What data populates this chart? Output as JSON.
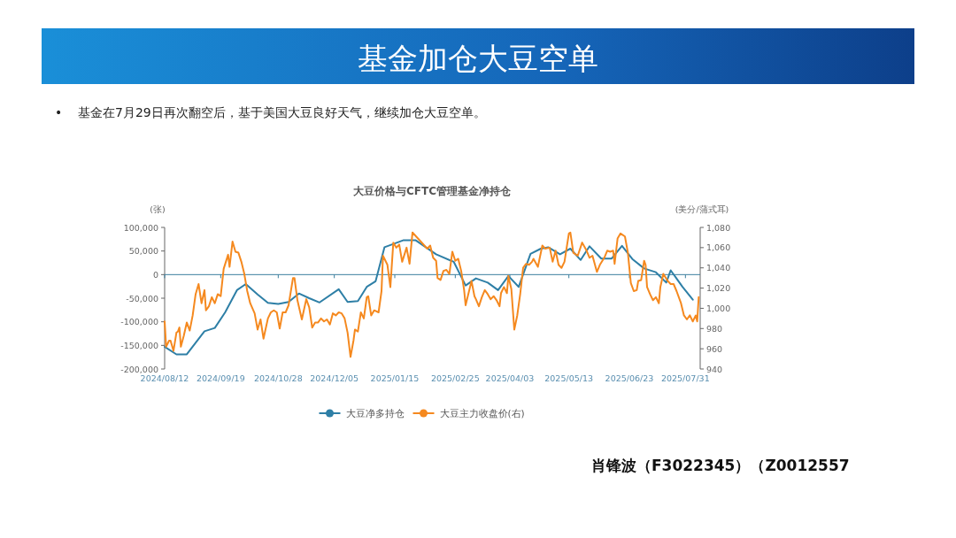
{
  "chart_data": {
    "type": "line",
    "title": "基金加仓大豆空单",
    "subtitle": "大豆价格与CFTC管理基金净持仓",
    "ylabel": "(张)",
    "y2label": "(美分/蒲式耳)",
    "annotations": [
      "•    基金在7月29日再次翻空后，基于美国大豆良好天气，继续加仓大豆空单。",
      "肖锋波（F3022345）（Z0012557"
    ],
    "xlim": [
      "2024-08-12",
      "2025-08-10"
    ],
    "xticks": [
      {
        "value": "2024-08-12",
        "label": "2024/08/12"
      },
      {
        "value": "2024-09-19",
        "label": "2024/09/19"
      },
      {
        "value": "2024-10-28",
        "label": "2024/10/28"
      },
      {
        "value": "2024-12-05",
        "label": "2024/12/05"
      },
      {
        "value": "2025-01-15",
        "label": "2025/01/15"
      },
      {
        "value": "2025-02-25",
        "label": "2025/02/25"
      },
      {
        "value": "2025-04-03",
        "label": "2025/04/03"
      },
      {
        "value": "2025-05-13",
        "label": "2025/05/13"
      },
      {
        "value": "2025-06-23",
        "label": "2025/06/23"
      },
      {
        "value": "2025-07-31",
        "label": "2025/07/31"
      }
    ],
    "ylim": [
      -200000,
      100000
    ],
    "yticks": [
      {
        "value": -200000,
        "label": "-200,000"
      },
      {
        "value": -150000,
        "label": "-150,000"
      },
      {
        "value": -100000,
        "label": "-100,000"
      },
      {
        "value": -50000,
        "label": "-50,000"
      },
      0,
      {
        "value": 50000,
        "label": "50,000"
      },
      {
        "value": 100000,
        "label": "100,000"
      }
    ],
    "y2lim": [
      940,
      1080
    ],
    "y2ticks": [
      940,
      960,
      980,
      {
        "value": 1000,
        "label": "1,000"
      },
      {
        "value": 1020,
        "label": "1,020"
      },
      {
        "value": 1040,
        "label": "1,040"
      },
      {
        "value": 1060,
        "label": "1,060"
      },
      {
        "value": 1080,
        "label": "1,080"
      }
    ],
    "ref_lines": [
      {
        "axis": "y",
        "value": 0,
        "color": "#3b7f9e"
      }
    ],
    "grid": false,
    "legend": "bottom",
    "marker": "none",
    "line_style": "solid",
    "series": [
      {
        "name": "大豆净多持仓",
        "color": "#2e7fa6",
        "x": [
          "2024-08-12",
          "2024-08-20",
          "2024-08-27",
          "2024-09-08",
          "2024-09-15",
          "2024-09-22",
          "2024-09-30",
          "2024-10-06",
          "2024-10-14",
          "2024-10-21",
          "2024-10-28",
          "2024-11-04",
          "2024-11-11",
          "2024-11-18",
          "2024-11-25",
          "2024-12-08",
          "2024-12-14",
          "2024-12-21",
          "2024-12-27",
          "2025-01-02",
          "2025-01-08",
          "2025-01-15",
          "2025-01-21",
          "2025-01-29",
          "2025-02-12",
          "2025-02-24",
          "2025-03-04",
          "2025-03-11",
          "2025-03-19",
          "2025-03-26",
          "2025-04-02",
          "2025-04-09",
          "2025-04-17",
          "2025-04-24",
          "2025-04-29",
          "2025-05-07",
          "2025-05-14",
          "2025-05-21",
          "2025-05-27",
          "2025-06-04",
          "2025-06-11",
          "2025-06-18",
          "2025-06-25",
          "2025-07-03",
          "2025-07-11",
          "2025-07-18",
          "2025-07-21",
          "2025-07-29",
          "2025-08-05"
        ],
        "values": [
          -153000,
          -169000,
          -169000,
          -120000,
          -113000,
          -80000,
          -33000,
          -20000,
          -42000,
          -60000,
          -62000,
          -58000,
          -40000,
          -50000,
          -59000,
          -31000,
          -58000,
          -56000,
          -26000,
          -14000,
          58000,
          66000,
          73000,
          73000,
          43000,
          27000,
          -23000,
          -8000,
          -17000,
          -33000,
          -3000,
          -26000,
          44000,
          55000,
          58000,
          43000,
          55000,
          31000,
          60000,
          34000,
          34000,
          61000,
          33000,
          13000,
          5000,
          -17000,
          9000,
          -26000,
          -53000
        ]
      },
      {
        "name": "大豆主力收盘价(右)",
        "color": "#f5891f",
        "axis": "y2",
        "x": [
          "2024-08-12",
          "2024-08-13",
          "2024-08-15",
          "2024-08-16",
          "2024-08-18",
          "2024-08-20",
          "2024-08-21",
          "2024-08-22",
          "2024-08-23",
          "2024-08-25",
          "2024-08-27",
          "2024-08-29",
          "2024-08-31",
          "2024-09-02",
          "2024-09-04",
          "2024-09-06",
          "2024-09-08",
          "2024-09-09",
          "2024-09-11",
          "2024-09-13",
          "2024-09-15",
          "2024-09-17",
          "2024-09-19",
          "2024-09-21",
          "2024-09-24",
          "2024-09-25",
          "2024-09-27",
          "2024-09-29",
          "2024-10-01",
          "2024-10-03",
          "2024-10-05",
          "2024-10-07",
          "2024-10-09",
          "2024-10-12",
          "2024-10-14",
          "2024-10-16",
          "2024-10-18",
          "2024-10-21",
          "2024-10-23",
          "2024-10-25",
          "2024-10-27",
          "2024-10-29",
          "2024-10-31",
          "2024-11-02",
          "2024-11-04",
          "2024-11-07",
          "2024-11-08",
          "2024-11-10",
          "2024-11-13",
          "2024-11-16",
          "2024-11-18",
          "2024-11-20",
          "2024-11-22",
          "2024-11-24",
          "2024-11-26",
          "2024-11-28",
          "2024-11-30",
          "2024-12-02",
          "2024-12-04",
          "2024-12-06",
          "2024-12-08",
          "2024-12-10",
          "2024-12-12",
          "2024-12-14",
          "2024-12-16",
          "2024-12-18",
          "2024-12-19",
          "2024-12-21",
          "2024-12-23",
          "2024-12-25",
          "2024-12-27",
          "2024-12-28",
          "2024-12-30",
          "2025-01-01",
          "2025-01-04",
          "2025-01-06",
          "2025-01-07",
          "2025-01-10",
          "2025-01-12",
          "2025-01-14",
          "2025-01-16",
          "2025-01-18",
          "2025-01-20",
          "2025-01-23",
          "2025-01-25",
          "2025-01-27",
          "2025-02-06",
          "2025-02-08",
          "2025-02-10",
          "2025-02-12",
          "2025-02-13",
          "2025-02-15",
          "2025-02-17",
          "2025-02-19",
          "2025-02-21",
          "2025-02-23",
          "2025-02-25",
          "2025-02-27",
          "2025-03-01",
          "2025-03-03",
          "2025-03-04",
          "2025-03-06",
          "2025-03-08",
          "2025-03-10",
          "2025-03-11",
          "2025-03-13",
          "2025-03-15",
          "2025-03-17",
          "2025-03-19",
          "2025-03-21",
          "2025-03-23",
          "2025-03-25",
          "2025-03-27",
          "2025-03-28",
          "2025-03-30",
          "2025-04-01",
          "2025-04-02",
          "2025-04-04",
          "2025-04-06",
          "2025-04-08",
          "2025-04-10",
          "2025-04-12",
          "2025-04-14",
          "2025-04-16",
          "2025-04-18",
          "2025-04-19",
          "2025-04-22",
          "2025-04-25",
          "2025-04-27",
          "2025-04-30",
          "2025-05-02",
          "2025-05-04",
          "2025-05-06",
          "2025-05-08",
          "2025-05-10",
          "2025-05-13",
          "2025-05-14",
          "2025-05-16",
          "2025-05-19",
          "2025-05-22",
          "2025-05-25",
          "2025-05-27",
          "2025-05-29",
          "2025-06-01",
          "2025-06-03",
          "2025-06-06",
          "2025-06-08",
          "2025-06-10",
          "2025-06-12",
          "2025-06-13",
          "2025-06-15",
          "2025-06-17",
          "2025-06-20",
          "2025-06-22",
          "2025-06-24",
          "2025-06-26",
          "2025-06-28",
          "2025-06-29",
          "2025-07-01",
          "2025-07-03",
          "2025-07-04",
          "2025-07-05",
          "2025-07-07",
          "2025-07-09",
          "2025-07-11",
          "2025-07-13",
          "2025-07-14",
          "2025-07-16",
          "2025-07-19",
          "2025-07-21",
          "2025-07-23",
          "2025-07-25",
          "2025-07-28",
          "2025-07-30",
          "2025-08-01",
          "2025-08-03",
          "2025-08-05",
          "2025-08-07",
          "2025-08-08",
          "2025-08-09"
        ],
        "values": [
          987,
          962,
          968,
          968,
          958,
          976,
          977,
          981,
          962,
          973,
          986,
          978,
          993,
          1014,
          1024,
          1005,
          1018,
          998,
          1002,
          1011,
          1005,
          1014,
          1012,
          1039,
          1053,
          1041,
          1066,
          1056,
          1055,
          1046,
          1034,
          1017,
          1005,
          995,
          979,
          989,
          970,
          990,
          996,
          998,
          996,
          980,
          996,
          996,
          1003,
          1030,
          1030,
          1008,
          989,
          1009,
          1001,
          981,
          986,
          986,
          990,
          987,
          989,
          984,
          995,
          993,
          996,
          995,
          990,
          976,
          952,
          968,
          979,
          977,
          996,
          990,
          1011,
          1012,
          993,
          998,
          996,
          1017,
          1052,
          1043,
          1021,
          1065,
          1060,
          1063,
          1046,
          1060,
          1044,
          1075,
          1059,
          1062,
          1050,
          1047,
          1030,
          1028,
          1037,
          1038,
          1034,
          1056,
          1047,
          1049,
          1037,
          1018,
          1003,
          1015,
          1027,
          1012,
          1009,
          1002,
          1011,
          1018,
          1014,
          1009,
          1012,
          1008,
          1002,
          1015,
          1021,
          1015,
          1032,
          1019,
          979,
          993,
          1014,
          1040,
          1044,
          1043,
          1046,
          1049,
          1041,
          1062,
          1059,
          1060,
          1046,
          1057,
          1043,
          1040,
          1046,
          1074,
          1075,
          1055,
          1052,
          1065,
          1057,
          1050,
          1052,
          1036,
          1043,
          1050,
          1057,
          1056,
          1057,
          1044,
          1069,
          1074,
          1071,
          1055,
          1025,
          1017,
          1018,
          1027,
          1028,
          1047,
          1043,
          1021,
          1014,
          1008,
          1011,
          1005,
          1021,
          1034,
          1027,
          1024,
          1024,
          1017,
          1005,
          993,
          989,
          993,
          987,
          993,
          987,
          1011
        ]
      }
    ]
  }
}
